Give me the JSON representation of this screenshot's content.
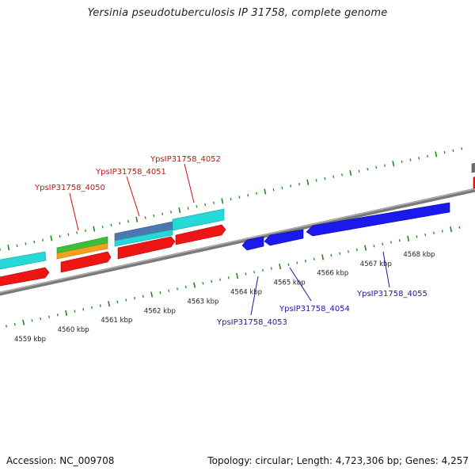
{
  "title": "Yersinia pseudotuberculosis IP 31758, complete genome",
  "footer": {
    "accession": "Accession: NC_009708",
    "stats": "Topology: circular; Length: 4,723,306 bp; Genes: 4,257"
  },
  "colors": {
    "forward_gene": "#ee1111",
    "reverse_gene": "#1a1aee",
    "cyan_feature": "#22d3d3",
    "green_feature": "#33bb33",
    "orange_feature": "#f29a1a",
    "steel_feature": "#4a78b0",
    "backbone": "#8c8c8c",
    "tick": "#1f8a1f",
    "forward_label": "#cc1111",
    "reverse_label": "#1a1aaa"
  },
  "kbp_labels": [
    "4559 kbp",
    "4560 kbp",
    "4561 kbp",
    "4562 kbp",
    "4563 kbp",
    "4564 kbp",
    "4565 kbp",
    "4566 kbp",
    "4567 kbp",
    "4568 kbp"
  ],
  "forward_genes": [
    {
      "label": "YpsIP31758_4050"
    },
    {
      "label": "YpsIP31758_4051"
    },
    {
      "label": "YpsIP31758_4052"
    }
  ],
  "reverse_genes": [
    {
      "label": "YpsIP31758_4053"
    },
    {
      "label": "YpsIP31758_4054"
    },
    {
      "label": "YpsIP31758_4055"
    }
  ]
}
